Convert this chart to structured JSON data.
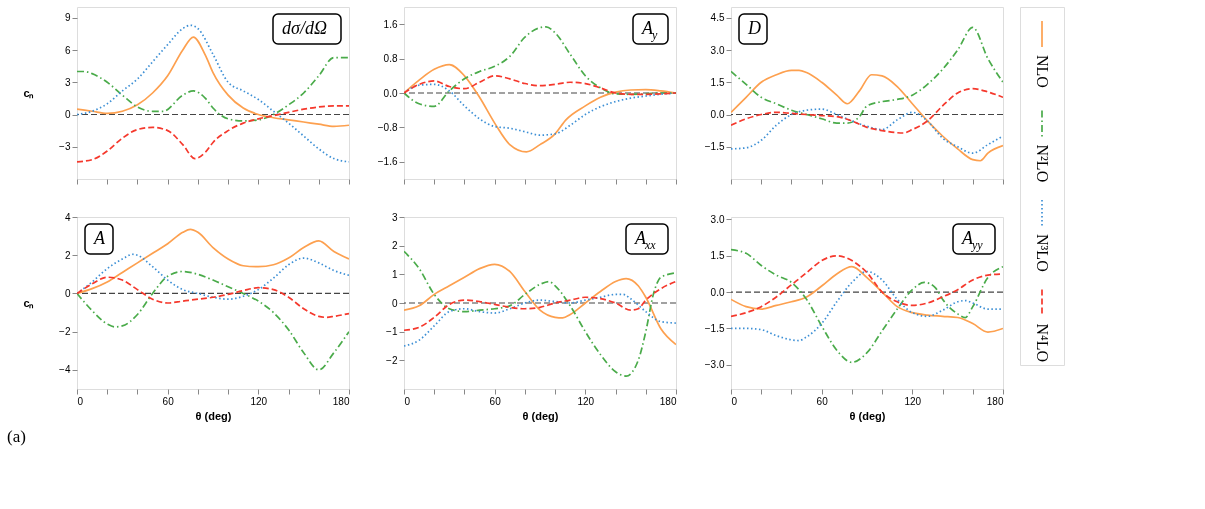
{
  "chart_data": [
    {
      "type": "line",
      "title": "dσ/dΩ",
      "ylabel": "cₙ",
      "legend": "right",
      "xlim": [
        0,
        180
      ],
      "ylim": [
        -6,
        10
      ],
      "tick_labels": "y",
      "xticks": [
        0,
        {
          "value": 20,
          "label": null
        },
        {
          "value": 40,
          "label": null
        },
        60,
        {
          "value": 80,
          "label": null
        },
        {
          "value": 100,
          "label": null
        },
        120,
        {
          "value": 140,
          "label": null
        },
        {
          "value": 160,
          "label": null
        },
        180
      ],
      "yticks": [
        -3,
        0,
        3,
        6,
        9
      ],
      "ref_lines": [
        {
          "axis": "y",
          "value": 0,
          "color": "#444444",
          "line_style": "dashed"
        }
      ],
      "series": [
        {
          "name": "NLO",
          "color": "#fda04f",
          "line_style": "solid",
          "x": [
            0,
            10,
            20,
            30,
            40,
            50,
            60,
            70,
            77,
            85,
            90,
            100,
            110,
            120,
            130,
            140,
            150,
            160,
            170,
            180
          ],
          "values": [
            0.5,
            0.3,
            0.1,
            0.3,
            0.9,
            2.0,
            3.6,
            6.0,
            7.2,
            5.5,
            3.9,
            1.8,
            0.6,
            0.0,
            -0.3,
            -0.5,
            -0.7,
            -0.9,
            -1.1,
            -1.0
          ]
        },
        {
          "name": "N²LO",
          "color": "#4aab4a",
          "line_style": "dashdot",
          "x": [
            0,
            5,
            10,
            20,
            30,
            40,
            50,
            57,
            70,
            77,
            85,
            90,
            100,
            110,
            120,
            130,
            140,
            150,
            160,
            170,
            180
          ],
          "values": [
            4.0,
            4.0,
            3.8,
            3.0,
            1.8,
            0.7,
            0.3,
            0.3,
            1.8,
            2.2,
            1.5,
            0.6,
            -0.4,
            -0.6,
            -0.5,
            0.0,
            0.9,
            2.0,
            3.6,
            5.3,
            5.3
          ]
        },
        {
          "name": "N³LO",
          "color": "#3c8fd5",
          "line_style": "dotted",
          "x": [
            0,
            10,
            20,
            30,
            40,
            50,
            60,
            70,
            75,
            80,
            90,
            100,
            110,
            120,
            130,
            140,
            150,
            160,
            170,
            180
          ],
          "values": [
            0.0,
            0.3,
            1.0,
            2.2,
            3.3,
            4.9,
            6.5,
            8.0,
            8.3,
            8.0,
            5.6,
            3.0,
            2.2,
            1.4,
            0.3,
            -0.8,
            -2.0,
            -3.2,
            -4.1,
            -4.4
          ]
        },
        {
          "name": "N⁴LO",
          "color": "#f5382c",
          "line_style": "dashed",
          "x": [
            0,
            10,
            20,
            30,
            40,
            50,
            60,
            70,
            78,
            85,
            90,
            100,
            110,
            120,
            130,
            140,
            150,
            160,
            170,
            180
          ],
          "values": [
            -4.4,
            -4.2,
            -3.4,
            -2.2,
            -1.4,
            -1.2,
            -1.5,
            -2.8,
            -4.1,
            -3.5,
            -2.6,
            -1.5,
            -0.8,
            -0.4,
            -0.1,
            0.2,
            0.5,
            0.7,
            0.8,
            0.8
          ]
        }
      ]
    },
    {
      "type": "line",
      "title": "A$_{y}$",
      "xlim": [
        0,
        180
      ],
      "ylim": [
        -2,
        2
      ],
      "tick_labels": "y",
      "xticks": [
        0,
        {
          "value": 20,
          "label": null
        },
        {
          "value": 40,
          "label": null
        },
        60,
        {
          "value": 80,
          "label": null
        },
        {
          "value": 100,
          "label": null
        },
        120,
        {
          "value": 140,
          "label": null
        },
        {
          "value": 160,
          "label": null
        },
        180
      ],
      "yticks": [
        -1.6,
        -0.8,
        {
          "value": 0,
          "label": "0.0"
        },
        0.8,
        1.6
      ],
      "ref_lines": [
        {
          "axis": "y",
          "value": 0,
          "color": "#444444",
          "line_style": "dashed"
        }
      ],
      "series": [
        {
          "color": "#fda04f",
          "line_style": "solid",
          "x": [
            0,
            10,
            20,
            30,
            40,
            50,
            60,
            70,
            81,
            90,
            100,
            107,
            120,
            130,
            140,
            150,
            160,
            170,
            180
          ],
          "values": [
            0,
            0.3,
            0.55,
            0.66,
            0.4,
            -0.1,
            -0.7,
            -1.2,
            -1.37,
            -1.2,
            -0.95,
            -0.63,
            -0.3,
            -0.1,
            0.02,
            0.07,
            0.08,
            0.05,
            0
          ]
        },
        {
          "color": "#4aab4a",
          "line_style": "dashdot",
          "x": [
            0,
            10,
            20,
            30,
            40,
            50,
            60,
            70,
            80,
            94,
            100,
            110,
            120,
            130,
            140,
            150,
            160,
            170,
            180
          ],
          "values": [
            0,
            -0.25,
            -0.31,
            0.05,
            0.33,
            0.5,
            0.62,
            0.85,
            1.3,
            1.54,
            1.4,
            0.9,
            0.4,
            0.12,
            -0.02,
            -0.03,
            -0.02,
            0,
            0
          ]
        },
        {
          "color": "#3c8fd5",
          "line_style": "dotted",
          "x": [
            0,
            10,
            20,
            30,
            40,
            50,
            60,
            70,
            80,
            90,
            100,
            110,
            120,
            130,
            140,
            150,
            160,
            170,
            180
          ],
          "values": [
            0,
            0.18,
            0.2,
            0.05,
            -0.3,
            -0.6,
            -0.78,
            -0.82,
            -0.9,
            -0.98,
            -0.95,
            -0.75,
            -0.5,
            -0.32,
            -0.2,
            -0.12,
            -0.07,
            -0.03,
            0
          ]
        },
        {
          "color": "#f5382c",
          "line_style": "dashed",
          "x": [
            0,
            10,
            20,
            30,
            40,
            50,
            60,
            70,
            80,
            90,
            100,
            110,
            120,
            130,
            140,
            150,
            160,
            170,
            180
          ],
          "values": [
            0,
            0.2,
            0.28,
            0.15,
            0.1,
            0.25,
            0.4,
            0.33,
            0.22,
            0.17,
            0.2,
            0.25,
            0.22,
            0.12,
            0,
            -0.03,
            -0.03,
            -0.02,
            0
          ]
        }
      ]
    },
    {
      "type": "line",
      "title": "D",
      "xlim": [
        0,
        180
      ],
      "ylim": [
        -3,
        5
      ],
      "tick_labels": "y",
      "xticks": [
        0,
        {
          "value": 20,
          "label": null
        },
        {
          "value": 40,
          "label": null
        },
        60,
        {
          "value": 80,
          "label": null
        },
        {
          "value": 100,
          "label": null
        },
        120,
        {
          "value": 140,
          "label": null
        },
        {
          "value": 160,
          "label": null
        },
        180
      ],
      "yticks": [
        -1.5,
        {
          "value": 0,
          "label": "0.0"
        },
        1.5,
        {
          "value": 3,
          "label": "3.0"
        },
        4.5
      ],
      "ref_lines": [
        {
          "axis": "y",
          "value": 0,
          "color": "#444444",
          "line_style": "dashed"
        }
      ],
      "series": [
        {
          "color": "#fda04f",
          "line_style": "solid",
          "x": [
            0,
            10,
            20,
            30,
            40,
            45,
            50,
            60,
            70,
            77,
            85,
            93,
            100,
            110,
            120,
            130,
            140,
            150,
            160,
            165,
            170,
            180
          ],
          "values": [
            0.1,
            0.8,
            1.5,
            1.85,
            2.05,
            2.05,
            1.95,
            1.5,
            0.9,
            0.5,
            1.1,
            1.85,
            1.8,
            1.3,
            0.5,
            -0.3,
            -1.0,
            -1.6,
            -2.1,
            -2.15,
            -1.8,
            -1.45
          ]
        },
        {
          "color": "#4aab4a",
          "line_style": "dashdot",
          "x": [
            0,
            10,
            20,
            30,
            40,
            50,
            60,
            70,
            77,
            85,
            90,
            100,
            110,
            120,
            130,
            140,
            150,
            160,
            170,
            180
          ],
          "values": [
            2.0,
            1.4,
            0.8,
            0.5,
            0.2,
            0.0,
            -0.2,
            -0.4,
            -0.4,
            -0.1,
            0.4,
            0.6,
            0.7,
            0.9,
            1.4,
            2.1,
            3.0,
            4.05,
            2.6,
            1.5
          ]
        },
        {
          "color": "#3c8fd5",
          "line_style": "dotted",
          "x": [
            0,
            10,
            20,
            30,
            40,
            50,
            60,
            70,
            80,
            90,
            100,
            110,
            120,
            130,
            140,
            150,
            160,
            170,
            180
          ],
          "values": [
            -1.6,
            -1.55,
            -1.2,
            -0.5,
            0.0,
            0.2,
            0.25,
            0.0,
            -0.3,
            -0.55,
            -0.7,
            -0.25,
            0.1,
            -0.3,
            -1.1,
            -1.5,
            -1.8,
            -1.4,
            -1.0
          ]
        },
        {
          "color": "#f5382c",
          "line_style": "dashed",
          "x": [
            0,
            10,
            20,
            30,
            40,
            50,
            60,
            70,
            80,
            90,
            100,
            114,
            120,
            130,
            140,
            150,
            160,
            170,
            180
          ],
          "values": [
            -0.5,
            -0.2,
            0.0,
            0.1,
            0.05,
            0.0,
            -0.05,
            -0.1,
            -0.3,
            -0.6,
            -0.75,
            -0.86,
            -0.7,
            -0.3,
            0.4,
            1.0,
            1.2,
            1.05,
            0.8
          ]
        }
      ]
    },
    {
      "type": "line",
      "title": "A",
      "ylabel": "cₙ",
      "xlabel": "θ (deg)",
      "annotations": [
        "(a)"
      ],
      "xlim": [
        0,
        180
      ],
      "ylim": [
        -5,
        4
      ],
      "xticks": [
        0,
        {
          "value": 20,
          "label": null
        },
        {
          "value": 40,
          "label": null
        },
        60,
        {
          "value": 80,
          "label": null
        },
        {
          "value": 100,
          "label": null
        },
        120,
        {
          "value": 140,
          "label": null
        },
        {
          "value": 160,
          "label": null
        },
        180
      ],
      "yticks": [
        -4,
        -2,
        0,
        2,
        4
      ],
      "ref_lines": [
        {
          "axis": "y",
          "value": 0,
          "color": "#444444",
          "line_style": "dashed"
        }
      ],
      "series": [
        {
          "color": "#fda04f",
          "line_style": "solid",
          "x": [
            0,
            10,
            20,
            30,
            40,
            50,
            60,
            70,
            75,
            80,
            90,
            100,
            110,
            120,
            130,
            140,
            150,
            160,
            170,
            180
          ],
          "values": [
            0,
            0.25,
            0.6,
            1.1,
            1.6,
            2.1,
            2.6,
            3.2,
            3.35,
            3.2,
            2.4,
            1.8,
            1.45,
            1.4,
            1.5,
            1.85,
            2.4,
            2.75,
            2.2,
            1.8
          ]
        },
        {
          "color": "#4aab4a",
          "line_style": "dashdot",
          "x": [
            0,
            10,
            20,
            25,
            30,
            40,
            50,
            60,
            70,
            80,
            90,
            100,
            110,
            120,
            130,
            140,
            150,
            160,
            170,
            180
          ],
          "values": [
            0,
            -0.9,
            -1.6,
            -1.75,
            -1.7,
            -1.1,
            0.0,
            0.9,
            1.15,
            1.0,
            0.7,
            0.35,
            0.0,
            -0.4,
            -1.0,
            -1.9,
            -3.1,
            -4.0,
            -3.1,
            -2.0
          ]
        },
        {
          "color": "#3c8fd5",
          "line_style": "dotted",
          "x": [
            0,
            10,
            20,
            30,
            37,
            40,
            50,
            60,
            70,
            80,
            90,
            100,
            110,
            120,
            130,
            140,
            150,
            160,
            170,
            180
          ],
          "values": [
            0,
            0.6,
            1.3,
            1.8,
            2.05,
            2.0,
            1.4,
            0.7,
            0.2,
            0.0,
            -0.2,
            -0.3,
            -0.15,
            0.2,
            0.8,
            1.5,
            1.85,
            1.6,
            1.2,
            0.95
          ]
        },
        {
          "color": "#f5382c",
          "line_style": "dashed",
          "x": [
            0,
            10,
            20,
            30,
            40,
            50,
            60,
            70,
            80,
            90,
            100,
            110,
            120,
            130,
            140,
            150,
            160,
            165,
            170,
            180
          ],
          "values": [
            0,
            0.5,
            0.85,
            0.7,
            0.2,
            -0.3,
            -0.5,
            -0.4,
            -0.3,
            -0.2,
            -0.05,
            0.15,
            0.3,
            0.2,
            -0.2,
            -0.8,
            -1.2,
            -1.25,
            -1.2,
            -1.05
          ]
        }
      ]
    },
    {
      "type": "line",
      "title": "A$_{xx}$",
      "xlabel": "θ (deg)",
      "xlim": [
        0,
        180
      ],
      "ylim": [
        -3,
        3
      ],
      "xticks": [
        0,
        {
          "value": 20,
          "label": null
        },
        {
          "value": 40,
          "label": null
        },
        60,
        {
          "value": 80,
          "label": null
        },
        {
          "value": 100,
          "label": null
        },
        120,
        {
          "value": 140,
          "label": null
        },
        {
          "value": 160,
          "label": null
        },
        180
      ],
      "yticks": [
        -2,
        -1,
        0,
        1,
        2,
        3
      ],
      "ref_lines": [
        {
          "axis": "y",
          "value": 0,
          "color": "#444444",
          "line_style": "dashed"
        }
      ],
      "series": [
        {
          "color": "#fda04f",
          "line_style": "solid",
          "x": [
            0,
            10,
            20,
            30,
            40,
            50,
            60,
            70,
            80,
            90,
            100,
            105,
            110,
            120,
            130,
            140,
            147,
            155,
            160,
            170,
            180
          ],
          "values": [
            -0.25,
            -0.1,
            0.3,
            0.6,
            0.9,
            1.2,
            1.35,
            1.1,
            0.4,
            -0.25,
            -0.5,
            -0.52,
            -0.4,
            0.0,
            0.4,
            0.75,
            0.85,
            0.6,
            0.2,
            -0.9,
            -1.45
          ]
        },
        {
          "color": "#4aab4a",
          "line_style": "dashdot",
          "x": [
            0,
            10,
            20,
            30,
            40,
            50,
            60,
            70,
            80,
            90,
            96,
            100,
            110,
            120,
            130,
            140,
            147,
            155,
            160,
            165,
            170,
            180
          ],
          "values": [
            1.8,
            1.2,
            0.3,
            -0.2,
            -0.3,
            -0.25,
            -0.2,
            -0.1,
            0.3,
            0.65,
            0.75,
            0.6,
            -0.1,
            -1.0,
            -1.8,
            -2.4,
            -2.55,
            -2.0,
            -1.0,
            0.3,
            0.9,
            1.05
          ]
        },
        {
          "color": "#3c8fd5",
          "line_style": "dotted",
          "x": [
            0,
            10,
            20,
            30,
            40,
            50,
            60,
            70,
            80,
            90,
            100,
            110,
            120,
            130,
            140,
            145,
            150,
            160,
            170,
            180
          ],
          "values": [
            -1.5,
            -1.3,
            -0.8,
            -0.3,
            -0.2,
            -0.3,
            -0.35,
            -0.2,
            0.0,
            0.1,
            0.05,
            0.0,
            0.1,
            0.2,
            0.3,
            0.3,
            0.15,
            -0.3,
            -0.65,
            -0.7
          ]
        },
        {
          "color": "#f5382c",
          "line_style": "dashed",
          "x": [
            0,
            10,
            20,
            30,
            40,
            50,
            60,
            70,
            80,
            90,
            100,
            110,
            120,
            130,
            140,
            150,
            155,
            160,
            170,
            180
          ],
          "values": [
            -0.95,
            -0.85,
            -0.5,
            -0.05,
            0.1,
            0.05,
            -0.05,
            -0.15,
            -0.2,
            -0.15,
            0.0,
            0.1,
            0.2,
            0.15,
            0.0,
            -0.25,
            -0.2,
            0.1,
            0.5,
            0.75
          ]
        }
      ]
    },
    {
      "type": "line",
      "title": "A$_{yy}$",
      "xlabel": "θ (deg)",
      "xlim": [
        0,
        180
      ],
      "ylim": [
        -4,
        3.1
      ],
      "xticks": [
        0,
        {
          "value": 20,
          "label": null
        },
        {
          "value": 40,
          "label": null
        },
        60,
        {
          "value": 80,
          "label": null
        },
        {
          "value": 100,
          "label": null
        },
        120,
        {
          "value": 140,
          "label": null
        },
        {
          "value": 160,
          "label": null
        },
        180
      ],
      "yticks": [
        {
          "value": -3,
          "label": "−3.0"
        },
        -1.5,
        {
          "value": 0,
          "label": "0.0"
        },
        1.5,
        {
          "value": 3,
          "label": "3.0"
        }
      ],
      "ref_lines": [
        {
          "axis": "y",
          "value": 0,
          "color": "#444444",
          "line_style": "dashed"
        }
      ],
      "series": [
        {
          "color": "#fda04f",
          "line_style": "solid",
          "x": [
            0,
            10,
            20,
            30,
            40,
            50,
            60,
            70,
            80,
            90,
            100,
            110,
            120,
            130,
            140,
            150,
            160,
            170,
            180
          ],
          "values": [
            -0.3,
            -0.6,
            -0.7,
            -0.55,
            -0.4,
            -0.2,
            0.25,
            0.75,
            1.05,
            0.6,
            0.0,
            -0.6,
            -0.85,
            -0.95,
            -1.0,
            -1.05,
            -1.3,
            -1.65,
            -1.5
          ]
        },
        {
          "color": "#4aab4a",
          "line_style": "dashdot",
          "x": [
            0,
            10,
            20,
            30,
            40,
            50,
            60,
            70,
            80,
            90,
            100,
            110,
            120,
            128,
            135,
            140,
            150,
            155,
            160,
            170,
            180
          ],
          "values": [
            1.75,
            1.6,
            1.1,
            0.7,
            0.4,
            -0.3,
            -1.4,
            -2.4,
            -2.9,
            -2.5,
            -1.6,
            -0.7,
            0.1,
            0.4,
            0.2,
            -0.3,
            -0.9,
            -1.05,
            -0.6,
            0.6,
            1.05
          ]
        },
        {
          "color": "#3c8fd5",
          "line_style": "dotted",
          "x": [
            0,
            10,
            20,
            30,
            45,
            50,
            60,
            70,
            80,
            90,
            100,
            110,
            120,
            130,
            140,
            150,
            155,
            160,
            170,
            180
          ],
          "values": [
            -1.5,
            -1.5,
            -1.55,
            -1.8,
            -2.0,
            -1.85,
            -1.3,
            -0.4,
            0.4,
            0.85,
            0.5,
            -0.3,
            -0.85,
            -1.0,
            -0.75,
            -0.4,
            -0.35,
            -0.45,
            -0.7,
            -0.7
          ]
        },
        {
          "color": "#f5382c",
          "line_style": "dashed",
          "x": [
            0,
            10,
            20,
            30,
            40,
            50,
            60,
            70,
            80,
            90,
            100,
            110,
            120,
            130,
            140,
            150,
            160,
            170,
            180
          ],
          "values": [
            -1.0,
            -0.85,
            -0.6,
            -0.2,
            0.3,
            0.8,
            1.3,
            1.5,
            1.3,
            0.8,
            0.0,
            -0.4,
            -0.55,
            -0.45,
            -0.2,
            0.1,
            0.5,
            0.7,
            0.75
          ]
        }
      ]
    }
  ]
}
